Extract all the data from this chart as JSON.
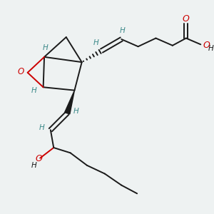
{
  "bg_color": "#eef2f2",
  "bond_color": "#1a1a1a",
  "oxygen_color": "#cc0000",
  "hydrogen_color": "#3d8a8a",
  "figsize": [
    3.0,
    3.0
  ],
  "dpi": 100,
  "xlim": [
    0,
    10
  ],
  "ylim": [
    0,
    10
  ]
}
